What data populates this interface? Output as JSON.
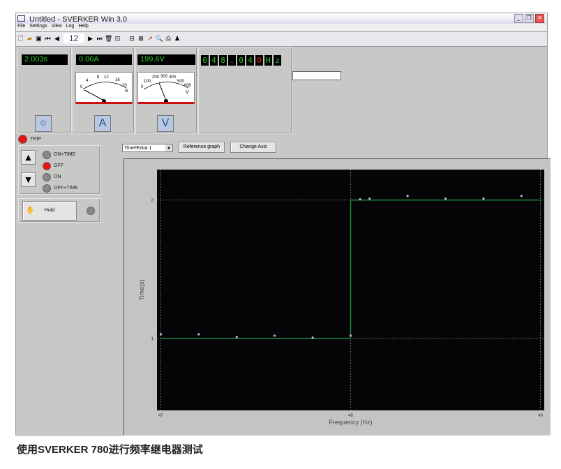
{
  "window": {
    "title": "Untitled - SVERKER Win 3.0",
    "controls": [
      "_",
      "❐",
      "✕"
    ]
  },
  "menu": [
    "File",
    "Settings",
    "View",
    "Log",
    "Help"
  ],
  "toolbar": {
    "record_number": "12",
    "icons": [
      "new-icon",
      "open-icon",
      "save-icon",
      "first-icon",
      "prev-icon",
      "next-icon",
      "last-icon",
      "delete-icon",
      "insert-icon",
      "window-icon",
      "graph-icon",
      "arrow-icon",
      "preview-icon",
      "print-icon",
      "user-icon"
    ]
  },
  "displays": {
    "time": "2.003s",
    "current": "0.00A",
    "voltage": "199.6V",
    "frequency_digits": [
      "0",
      "4",
      "8",
      ".",
      "0",
      "4",
      "0",
      "H",
      "z"
    ],
    "frequency_digit_colors": [
      "#33cc33",
      "#33cc33",
      "#33cc33",
      "#33cc33",
      "#33cc33",
      "#33cc33",
      "#ee2222",
      "#33cc33",
      "#33cc33"
    ]
  },
  "ammeter": {
    "scale": [
      "0",
      "4",
      "8",
      "12",
      "16",
      "20"
    ],
    "unit": "A",
    "value": 0
  },
  "voltmeter": {
    "scale": [
      "0",
      "100",
      "200",
      "300",
      "400",
      "500",
      "600"
    ],
    "unit": "V",
    "value": 199.6
  },
  "panel_buttons": {
    "timer": "timer-icon",
    "ammeter": "A",
    "voltmeter": "V"
  },
  "trip": {
    "label": "TRIP",
    "active": true
  },
  "modes": [
    {
      "label": "ON+TIME",
      "active": false
    },
    {
      "label": "OFF",
      "active": true
    },
    {
      "label": "ON",
      "active": false
    },
    {
      "label": "OFF+TIME",
      "active": false
    }
  ],
  "hold": {
    "label": "Hold",
    "led_active": false
  },
  "graph_controls": {
    "dropdown": "Time/Extra 1",
    "reference": "Reference graph",
    "change_axis": "Change Axis"
  },
  "chart_data": {
    "type": "scatter",
    "xlabel": "Frequency (Hz)",
    "ylabel": "Time(s)",
    "xlim": [
      46.98,
      49.02
    ],
    "ylim": [
      0.48,
      2.22
    ],
    "xticks": [
      "47",
      "48",
      "49"
    ],
    "yticks": [
      "1",
      "2"
    ],
    "grid": true,
    "background": "#050508",
    "reference_line": {
      "color": "#1e8c3c",
      "points": [
        [
          47,
          1
        ],
        [
          48,
          1
        ],
        [
          48,
          2
        ],
        [
          49,
          2
        ]
      ]
    },
    "points_color": "#e0a8e0",
    "points": [
      [
        47.0,
        1.03
      ],
      [
        47.2,
        1.03
      ],
      [
        47.4,
        1.01
      ],
      [
        47.6,
        1.02
      ],
      [
        47.8,
        1.005
      ],
      [
        48.0,
        1.02
      ],
      [
        48.05,
        2.005
      ],
      [
        48.1,
        2.01
      ],
      [
        48.3,
        2.03
      ],
      [
        48.5,
        2.01
      ],
      [
        48.7,
        2.01
      ],
      [
        48.9,
        2.03
      ]
    ]
  },
  "caption": "使用SVERKER 780进行频率继电器测试"
}
